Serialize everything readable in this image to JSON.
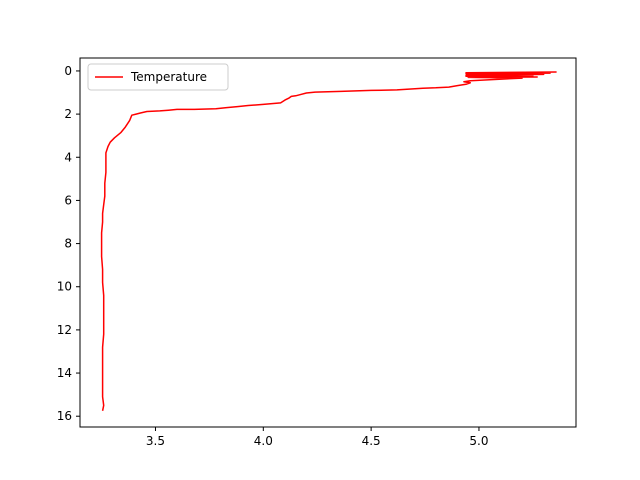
{
  "chart_data": {
    "type": "line",
    "title": "",
    "xlabel": "",
    "ylabel": "",
    "xlim": [
      3.15,
      5.45
    ],
    "ylim": [
      16.5,
      -0.6
    ],
    "y_inverted": true,
    "grid": false,
    "legend_position": "top-left",
    "x_ticks": [
      3.5,
      4.0,
      4.5,
      5.0
    ],
    "x_tick_labels": [
      "3.5",
      "4.0",
      "4.5",
      "5.0"
    ],
    "y_ticks": [
      0,
      2,
      4,
      6,
      8,
      10,
      12,
      14,
      16
    ],
    "y_tick_labels": [
      "0",
      "2",
      "4",
      "6",
      "8",
      "10",
      "12",
      "14",
      "16"
    ],
    "series": [
      {
        "name": "Temperature",
        "color": "#ff0000",
        "points": [
          [
            5.36,
            0.05
          ],
          [
            4.94,
            0.08
          ],
          [
            5.33,
            0.1
          ],
          [
            4.94,
            0.13
          ],
          [
            5.3,
            0.16
          ],
          [
            4.94,
            0.2
          ],
          [
            5.25,
            0.22
          ],
          [
            4.94,
            0.25
          ],
          [
            5.27,
            0.28
          ],
          [
            4.95,
            0.3
          ],
          [
            5.2,
            0.33
          ],
          [
            4.96,
            0.45
          ],
          [
            4.93,
            0.5
          ],
          [
            4.96,
            0.55
          ],
          [
            4.94,
            0.62
          ],
          [
            4.9,
            0.68
          ],
          [
            4.86,
            0.75
          ],
          [
            4.8,
            0.78
          ],
          [
            4.74,
            0.8
          ],
          [
            4.62,
            0.88
          ],
          [
            4.5,
            0.9
          ],
          [
            4.36,
            0.95
          ],
          [
            4.24,
            0.98
          ],
          [
            4.2,
            1.02
          ],
          [
            4.17,
            1.1
          ],
          [
            4.15,
            1.15
          ],
          [
            4.13,
            1.18
          ],
          [
            4.12,
            1.25
          ],
          [
            4.1,
            1.35
          ],
          [
            4.08,
            1.48
          ],
          [
            4.0,
            1.55
          ],
          [
            3.93,
            1.6
          ],
          [
            3.88,
            1.65
          ],
          [
            3.83,
            1.7
          ],
          [
            3.78,
            1.75
          ],
          [
            3.68,
            1.78
          ],
          [
            3.6,
            1.78
          ],
          [
            3.56,
            1.82
          ],
          [
            3.52,
            1.85
          ],
          [
            3.46,
            1.88
          ],
          [
            3.43,
            1.95
          ],
          [
            3.41,
            2.0
          ],
          [
            3.39,
            2.05
          ],
          [
            3.38,
            2.3
          ],
          [
            3.36,
            2.6
          ],
          [
            3.34,
            2.85
          ],
          [
            3.31,
            3.1
          ],
          [
            3.29,
            3.3
          ],
          [
            3.28,
            3.5
          ],
          [
            3.27,
            3.8
          ],
          [
            3.27,
            4.2
          ],
          [
            3.27,
            4.7
          ],
          [
            3.265,
            5.2
          ],
          [
            3.265,
            5.8
          ],
          [
            3.26,
            6.2
          ],
          [
            3.255,
            6.6
          ],
          [
            3.255,
            7.0
          ],
          [
            3.25,
            7.5
          ],
          [
            3.25,
            8.0
          ],
          [
            3.25,
            8.6
          ],
          [
            3.255,
            9.2
          ],
          [
            3.255,
            9.8
          ],
          [
            3.26,
            10.4
          ],
          [
            3.26,
            11.0
          ],
          [
            3.26,
            11.6
          ],
          [
            3.26,
            12.2
          ],
          [
            3.255,
            12.8
          ],
          [
            3.255,
            13.4
          ],
          [
            3.255,
            14.0
          ],
          [
            3.255,
            14.6
          ],
          [
            3.255,
            15.1
          ],
          [
            3.26,
            15.5
          ],
          [
            3.255,
            15.75
          ]
        ]
      }
    ]
  }
}
